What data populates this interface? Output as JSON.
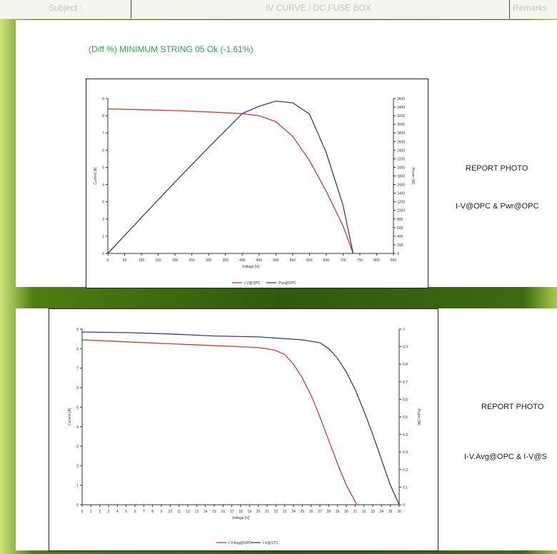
{
  "header": {
    "subject_label": "Subject :",
    "title": "IV CURVE / DC FUSE BOX",
    "remarks_label": "Remarks"
  },
  "panel1": {
    "diff_text": "(Diff %) MINIMUM STRING 05 Ok (-1.61%)",
    "side_title": "REPORT PHOTO",
    "side_subtitle": "I-V@OPC & Pwr@OPC"
  },
  "panel2": {
    "side_title": "REPORT PHOTO",
    "side_subtitle": "I-V.Avg@OPC & I-V@S"
  },
  "colors": {
    "red": "#d23a3a",
    "blue": "#3a3a96"
  },
  "chart_data": [
    {
      "type": "line",
      "xlabel": "Voltage [V]",
      "ylabel": "Current [A]",
      "y2label": "Power [W]",
      "xlim": [
        0,
        850
      ],
      "ylim": [
        0,
        9
      ],
      "y2lim": [
        0,
        3600
      ],
      "xticks": [
        0,
        50,
        100,
        150,
        200,
        250,
        300,
        350,
        400,
        450,
        500,
        550,
        600,
        650,
        700,
        750,
        800,
        850
      ],
      "yticks": [
        0,
        1,
        2,
        3,
        4,
        5,
        6,
        7,
        8,
        9
      ],
      "y2ticks": [
        0,
        200,
        400,
        600,
        800,
        1000,
        1200,
        1400,
        1600,
        1800,
        2000,
        2200,
        2400,
        2600,
        2800,
        3000,
        3200,
        3400,
        3600
      ],
      "series": [
        {
          "name": "I-V@OPC",
          "color": "#d23a3a",
          "axis": "left",
          "x": [
            0,
            100,
            200,
            300,
            400,
            450,
            500,
            550,
            600,
            650,
            700,
            730
          ],
          "y": [
            8.4,
            8.35,
            8.3,
            8.22,
            8.12,
            8.0,
            7.65,
            6.8,
            5.4,
            3.6,
            1.6,
            0
          ]
        },
        {
          "name": "Pwr@OPC",
          "color": "#3a3a96",
          "axis": "right",
          "x": [
            0,
            100,
            200,
            300,
            400,
            450,
            500,
            550,
            600,
            650,
            700,
            730
          ],
          "y": [
            0,
            835,
            1660,
            2465,
            3250,
            3420,
            3540,
            3500,
            3240,
            2340,
            1120,
            0
          ]
        }
      ]
    },
    {
      "type": "line",
      "xlabel": "Voltage [V]",
      "ylabel": "Current [A]",
      "y2label": "Power [W]",
      "xlim": [
        0,
        36
      ],
      "ylim": [
        0,
        9
      ],
      "y2lim": [
        0,
        1
      ],
      "xticks": [
        0,
        1,
        2,
        3,
        4,
        5,
        6,
        7,
        8,
        9,
        10,
        11,
        12,
        13,
        14,
        15,
        16,
        17,
        18,
        19,
        20,
        21,
        22,
        23,
        24,
        25,
        26,
        27,
        28,
        29,
        30,
        31,
        32,
        33,
        34,
        35,
        36
      ],
      "yticks": [
        0,
        1,
        2,
        3,
        4,
        5,
        6,
        7,
        8,
        9
      ],
      "y2ticks": [
        0,
        0.1,
        0.2,
        0.3,
        0.4,
        0.5,
        0.6,
        0.7,
        0.8,
        0.9,
        1
      ],
      "series": [
        {
          "name": "I-V.Avg@OPC",
          "color": "#d23a3a",
          "x": [
            0,
            5,
            10,
            15,
            18,
            20,
            21,
            22,
            23,
            24,
            25,
            26,
            27,
            28,
            29,
            30,
            31.2
          ],
          "y": [
            8.45,
            8.35,
            8.25,
            8.15,
            8.1,
            8.05,
            8.0,
            7.9,
            7.7,
            7.2,
            6.5,
            5.6,
            4.5,
            3.3,
            2.1,
            1.0,
            0
          ]
        },
        {
          "name": "I-V@STC",
          "color": "#3a3a96",
          "x": [
            0,
            5,
            10,
            15,
            20,
            25,
            27,
            28,
            29,
            30,
            31,
            32,
            33,
            34,
            35,
            36
          ],
          "y": [
            8.85,
            8.82,
            8.75,
            8.65,
            8.6,
            8.45,
            8.3,
            8.0,
            7.5,
            6.8,
            5.9,
            4.8,
            3.6,
            2.3,
            1.0,
            0
          ]
        }
      ]
    }
  ]
}
